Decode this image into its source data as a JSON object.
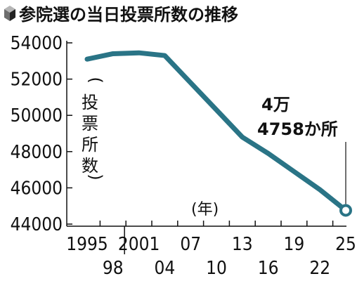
{
  "chart_data": {
    "type": "line",
    "title": "参院選の当日投票所数の推移",
    "ylabel": "(投票所数)",
    "xlabel": "(年)",
    "x": [
      1995,
      1998,
      2001,
      2004,
      2007,
      2010,
      2013,
      2016,
      2019,
      2022,
      2025
    ],
    "x_tick_labels": [
      "1995",
      "98",
      "2001",
      "04",
      "07",
      "10",
      "13",
      "16",
      "19",
      "22",
      "25"
    ],
    "series": [
      {
        "values": [
          53100,
          53400,
          53450,
          53300,
          51800,
          50300,
          48800,
          47900,
          46900,
          45900,
          44758
        ]
      }
    ],
    "ylim": [
      44000,
      54000
    ],
    "y_ticks": [
      44000,
      46000,
      48000,
      50000,
      52000,
      54000
    ],
    "annotations": [
      {
        "x": 2025,
        "lines": [
          "4万",
          "4758か所"
        ]
      }
    ],
    "grid": false,
    "line_color": "#2a7486"
  }
}
